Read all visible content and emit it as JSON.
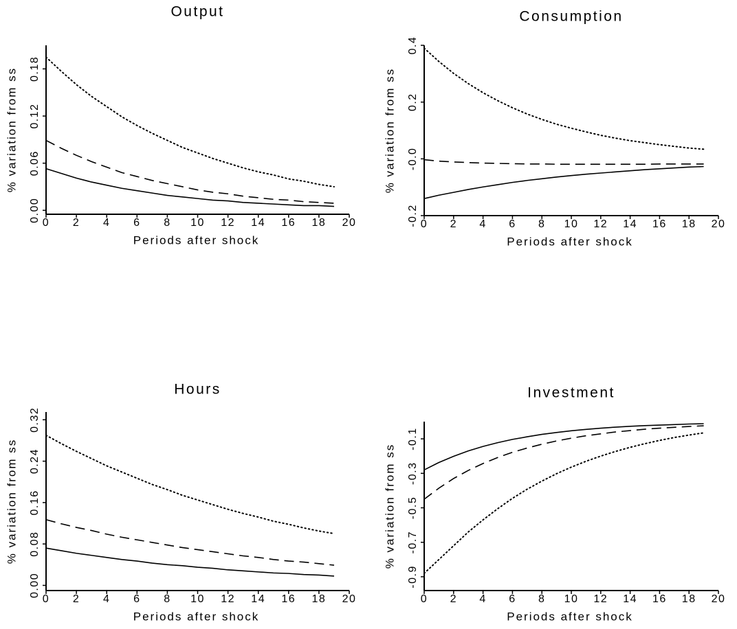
{
  "chart_data": [
    {
      "type": "line",
      "title": "Output",
      "xlabel": "Periods after shock",
      "ylabel": "% variation from ss",
      "x": [
        0,
        1,
        2,
        3,
        4,
        5,
        6,
        7,
        8,
        9,
        10,
        11,
        12,
        13,
        14,
        15,
        16,
        17,
        18,
        19
      ],
      "xlim": [
        0,
        20
      ],
      "xticks": [
        0,
        2,
        4,
        6,
        8,
        10,
        12,
        14,
        16,
        18,
        20
      ],
      "ylim": [
        -0.005,
        0.21
      ],
      "yticks": [
        {
          "value": 0,
          "label": "0.00"
        },
        0.06,
        0.12,
        0.18
      ],
      "series": [
        {
          "color": "#000000",
          "dash": "solid",
          "values": [
            0.053,
            0.047,
            0.041,
            0.036,
            0.032,
            0.028,
            0.025,
            0.022,
            0.019,
            0.017,
            0.015,
            0.013,
            0.012,
            0.01,
            0.009,
            0.008,
            0.007,
            0.006,
            0.006,
            0.005
          ]
        },
        {
          "color": "#000000",
          "dash": "dashed",
          "values": [
            0.089,
            0.079,
            0.07,
            0.062,
            0.055,
            0.048,
            0.043,
            0.038,
            0.034,
            0.03,
            0.026,
            0.023,
            0.021,
            0.018,
            0.016,
            0.014,
            0.013,
            0.011,
            0.01,
            0.009
          ]
        },
        {
          "color": "#000000",
          "dash": "dotted",
          "values": [
            0.195,
            0.177,
            0.16,
            0.145,
            0.132,
            0.119,
            0.108,
            0.098,
            0.089,
            0.08,
            0.073,
            0.066,
            0.06,
            0.054,
            0.049,
            0.045,
            0.04,
            0.037,
            0.033,
            0.03
          ]
        }
      ]
    },
    {
      "type": "line",
      "title": "Consumption",
      "xlabel": "Periods after shock",
      "ylabel": "% variation from ss",
      "x": [
        0,
        1,
        2,
        3,
        4,
        5,
        6,
        7,
        8,
        9,
        10,
        11,
        12,
        13,
        14,
        15,
        16,
        17,
        18,
        19
      ],
      "xlim": [
        0,
        20
      ],
      "xticks": [
        0,
        2,
        4,
        6,
        8,
        10,
        12,
        14,
        16,
        18,
        20
      ],
      "ylim": [
        -0.2,
        0.4
      ],
      "yticks": [
        -0.2,
        {
          "value": 0,
          "label": "-0.0"
        },
        0.2,
        0.4
      ],
      "series": [
        {
          "color": "#000000",
          "dash": "solid",
          "values": [
            -0.14,
            -0.128,
            -0.118,
            -0.108,
            -0.099,
            -0.091,
            -0.083,
            -0.076,
            -0.07,
            -0.064,
            -0.059,
            -0.054,
            -0.05,
            -0.046,
            -0.042,
            -0.038,
            -0.035,
            -0.032,
            -0.029,
            -0.027
          ]
        },
        {
          "color": "#000000",
          "dash": "dashed",
          "values": [
            -0.003,
            -0.008,
            -0.011,
            -0.013,
            -0.015,
            -0.016,
            -0.017,
            -0.018,
            -0.018,
            -0.019,
            -0.019,
            -0.019,
            -0.019,
            -0.019,
            -0.019,
            -0.019,
            -0.018,
            -0.018,
            -0.018,
            -0.018
          ]
        },
        {
          "color": "#000000",
          "dash": "dotted",
          "values": [
            0.39,
            0.343,
            0.301,
            0.265,
            0.233,
            0.205,
            0.18,
            0.158,
            0.139,
            0.122,
            0.108,
            0.095,
            0.083,
            0.073,
            0.064,
            0.057,
            0.05,
            0.044,
            0.038,
            0.034
          ]
        }
      ]
    },
    {
      "type": "line",
      "title": "Hours",
      "xlabel": "Periods after shock",
      "ylabel": "% variation from ss",
      "x": [
        0,
        1,
        2,
        3,
        4,
        5,
        6,
        7,
        8,
        9,
        10,
        11,
        12,
        13,
        14,
        15,
        16,
        17,
        18,
        19
      ],
      "xlim": [
        0,
        20
      ],
      "xticks": [
        0,
        2,
        4,
        6,
        8,
        10,
        12,
        14,
        16,
        18,
        20
      ],
      "ylim": [
        -0.01,
        0.335
      ],
      "yticks": [
        {
          "value": 0,
          "label": "0.00"
        },
        0.08,
        0.16,
        0.24,
        0.32
      ],
      "series": [
        {
          "color": "#000000",
          "dash": "solid",
          "values": [
            0.072,
            0.067,
            0.062,
            0.058,
            0.054,
            0.05,
            0.047,
            0.043,
            0.04,
            0.038,
            0.035,
            0.033,
            0.03,
            0.028,
            0.026,
            0.024,
            0.023,
            0.021,
            0.02,
            0.018
          ]
        },
        {
          "color": "#000000",
          "dash": "dashed",
          "values": [
            0.127,
            0.119,
            0.112,
            0.106,
            0.099,
            0.093,
            0.088,
            0.083,
            0.078,
            0.073,
            0.069,
            0.065,
            0.061,
            0.057,
            0.054,
            0.05,
            0.047,
            0.045,
            0.042,
            0.039
          ]
        },
        {
          "color": "#000000",
          "dash": "dotted",
          "values": [
            0.29,
            0.274,
            0.259,
            0.245,
            0.231,
            0.219,
            0.207,
            0.195,
            0.185,
            0.174,
            0.165,
            0.156,
            0.147,
            0.139,
            0.132,
            0.124,
            0.118,
            0.111,
            0.105,
            0.1
          ]
        }
      ]
    },
    {
      "type": "line",
      "title": "Investment",
      "xlabel": "Periods after shock",
      "ylabel": "% variation from ss",
      "x": [
        0,
        1,
        2,
        3,
        4,
        5,
        6,
        7,
        8,
        9,
        10,
        11,
        12,
        13,
        14,
        15,
        16,
        17,
        18,
        19
      ],
      "xlim": [
        0,
        20
      ],
      "xticks": [
        0,
        2,
        4,
        6,
        8,
        10,
        12,
        14,
        16,
        18,
        20
      ],
      "ylim": [
        -0.98,
        0
      ],
      "yticks": [
        -0.9,
        -0.7,
        -0.5,
        -0.3,
        -0.1
      ],
      "series": [
        {
          "color": "#000000",
          "dash": "solid",
          "values": [
            -0.28,
            -0.237,
            -0.201,
            -0.17,
            -0.144,
            -0.122,
            -0.103,
            -0.088,
            -0.074,
            -0.063,
            -0.053,
            -0.045,
            -0.038,
            -0.032,
            -0.027,
            -0.023,
            -0.02,
            -0.017,
            -0.014,
            -0.012
          ]
        },
        {
          "color": "#000000",
          "dash": "dashed",
          "values": [
            -0.45,
            -0.386,
            -0.33,
            -0.283,
            -0.243,
            -0.208,
            -0.178,
            -0.153,
            -0.131,
            -0.112,
            -0.096,
            -0.082,
            -0.071,
            -0.06,
            -0.052,
            -0.044,
            -0.038,
            -0.033,
            -0.028,
            -0.024
          ]
        },
        {
          "color": "#000000",
          "dash": "dotted",
          "values": [
            -0.88,
            -0.8,
            -0.72,
            -0.64,
            -0.57,
            -0.505,
            -0.445,
            -0.392,
            -0.345,
            -0.302,
            -0.264,
            -0.23,
            -0.2,
            -0.173,
            -0.149,
            -0.128,
            -0.109,
            -0.092,
            -0.078,
            -0.065
          ]
        }
      ]
    }
  ]
}
